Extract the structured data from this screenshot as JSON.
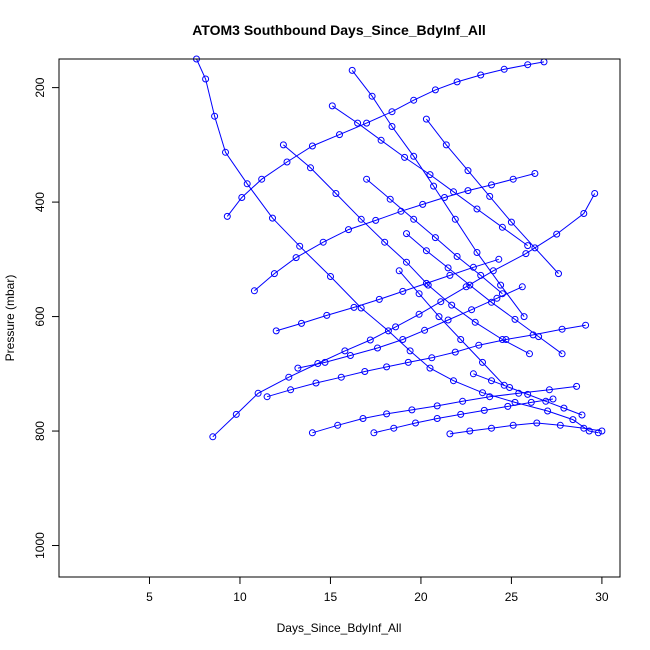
{
  "chart_data": {
    "type": "line",
    "title": "ATOM3 Southbound Days_Since_BdyInf_All",
    "xlabel": "Days_Since_BdyInf_All",
    "ylabel": "Pressure (mbar)",
    "xlim": [
      0,
      31
    ],
    "ylim": [
      1055,
      150
    ],
    "y_reversed": true,
    "x_ticks": [
      5,
      10,
      15,
      20,
      25,
      30
    ],
    "y_ticks": [
      200,
      400,
      600,
      800,
      1000
    ],
    "grid": false,
    "legend": "none",
    "series_color": "#0000ff",
    "marker": "open-circle",
    "series": [
      {
        "x": [
          7.6,
          8.1,
          8.6,
          9.2,
          10.4,
          11.8,
          13.3,
          15.0,
          16.7,
          18.2,
          19.4,
          20.5,
          21.8,
          23.4,
          25.2,
          27.0,
          28.4,
          29.3,
          29.8
        ],
        "y": [
          150,
          185,
          250,
          313,
          368,
          428,
          477,
          530,
          585,
          625,
          660,
          690,
          712,
          733,
          750,
          765,
          780,
          800,
          803
        ]
      },
      {
        "x": [
          8.5,
          9.8,
          11.0,
          12.7,
          14.3,
          15.8,
          17.2,
          18.6,
          19.9,
          21.1,
          22.5,
          24.0,
          25.8,
          27.5,
          29.0,
          29.6
        ],
        "y": [
          810,
          771,
          734,
          706,
          682,
          660,
          641,
          618,
          596,
          574,
          548,
          520,
          490,
          456,
          420,
          385
        ]
      },
      {
        "x": [
          9.3,
          10.1,
          11.2,
          12.6,
          14.0,
          15.5,
          17.0,
          18.4,
          19.6,
          20.8,
          22.0,
          23.3,
          24.6,
          25.9,
          26.8
        ],
        "y": [
          425,
          392,
          360,
          330,
          302,
          282,
          262,
          242,
          222,
          204,
          190,
          178,
          168,
          160,
          155
        ]
      },
      {
        "x": [
          10.8,
          11.9,
          13.1,
          14.6,
          16.0,
          17.5,
          18.9,
          20.1,
          21.3,
          22.6,
          23.9,
          25.1,
          26.3
        ],
        "y": [
          555,
          525,
          497,
          470,
          448,
          432,
          416,
          404,
          392,
          380,
          370,
          360,
          350
        ]
      },
      {
        "x": [
          11.5,
          12.8,
          14.2,
          15.6,
          16.9,
          18.1,
          19.3,
          20.6,
          21.9,
          23.2,
          24.7,
          26.2,
          27.8,
          29.1
        ],
        "y": [
          740,
          728,
          716,
          706,
          696,
          688,
          680,
          672,
          662,
          650,
          640,
          632,
          622,
          615
        ]
      },
      {
        "x": [
          12.4,
          13.9,
          15.3,
          16.7,
          18.0,
          19.2,
          20.4,
          21.7,
          23.0,
          24.5,
          26.0
        ],
        "y": [
          300,
          340,
          385,
          430,
          470,
          505,
          545,
          580,
          610,
          640,
          665
        ]
      },
      {
        "x": [
          14.0,
          15.4,
          16.8,
          18.1,
          19.5,
          20.9,
          22.3,
          23.8,
          25.4,
          27.1,
          28.6
        ],
        "y": [
          803,
          790,
          778,
          770,
          763,
          756,
          748,
          740,
          734,
          728,
          722
        ]
      },
      {
        "x": [
          16.2,
          17.3,
          18.4,
          19.6,
          20.7,
          21.9,
          23.1,
          24.4,
          25.7
        ],
        "y": [
          170,
          215,
          268,
          320,
          372,
          430,
          488,
          545,
          600
        ]
      },
      {
        "x": [
          17.4,
          18.5,
          19.7,
          20.9,
          22.2,
          23.5,
          24.8,
          26.1,
          27.3
        ],
        "y": [
          803,
          795,
          786,
          778,
          771,
          764,
          757,
          750,
          744
        ]
      },
      {
        "x": [
          18.8,
          19.9,
          21.0,
          22.2,
          23.4,
          24.6
        ],
        "y": [
          520,
          560,
          600,
          640,
          680,
          720
        ]
      },
      {
        "x": [
          20.3,
          21.4,
          22.6,
          23.8,
          25.0,
          26.3,
          27.6
        ],
        "y": [
          255,
          300,
          345,
          390,
          435,
          480,
          525
        ]
      },
      {
        "x": [
          21.6,
          22.7,
          23.9,
          25.1,
          26.4,
          27.7,
          29.0,
          30.0
        ],
        "y": [
          805,
          800,
          795,
          790,
          786,
          790,
          795,
          800
        ]
      },
      {
        "x": [
          13.2,
          14.7,
          16.1,
          17.6,
          19.0,
          20.2,
          21.5,
          22.8,
          24.2,
          25.6
        ],
        "y": [
          690,
          680,
          668,
          655,
          640,
          624,
          606,
          588,
          568,
          548
        ]
      },
      {
        "x": [
          15.1,
          16.5,
          17.8,
          19.1,
          20.5,
          21.8,
          23.1,
          24.5,
          25.9
        ],
        "y": [
          232,
          262,
          292,
          322,
          352,
          382,
          412,
          444,
          476
        ]
      },
      {
        "x": [
          19.2,
          20.3,
          21.5,
          22.7,
          23.9,
          25.2,
          26.5,
          27.8
        ],
        "y": [
          455,
          485,
          515,
          545,
          575,
          605,
          635,
          665
        ]
      },
      {
        "x": [
          12.0,
          13.4,
          14.8,
          16.3,
          17.7,
          19.0,
          20.3,
          21.6,
          22.9,
          24.3
        ],
        "y": [
          625,
          612,
          598,
          584,
          570,
          556,
          542,
          528,
          514,
          500
        ]
      },
      {
        "x": [
          22.9,
          23.9,
          24.9,
          25.9,
          26.9,
          27.9,
          28.9
        ],
        "y": [
          700,
          712,
          724,
          736,
          748,
          760,
          772
        ]
      },
      {
        "x": [
          17.0,
          18.3,
          19.6,
          20.8,
          22.0,
          23.3,
          24.5
        ],
        "y": [
          360,
          395,
          430,
          462,
          495,
          528,
          560
        ]
      }
    ]
  }
}
